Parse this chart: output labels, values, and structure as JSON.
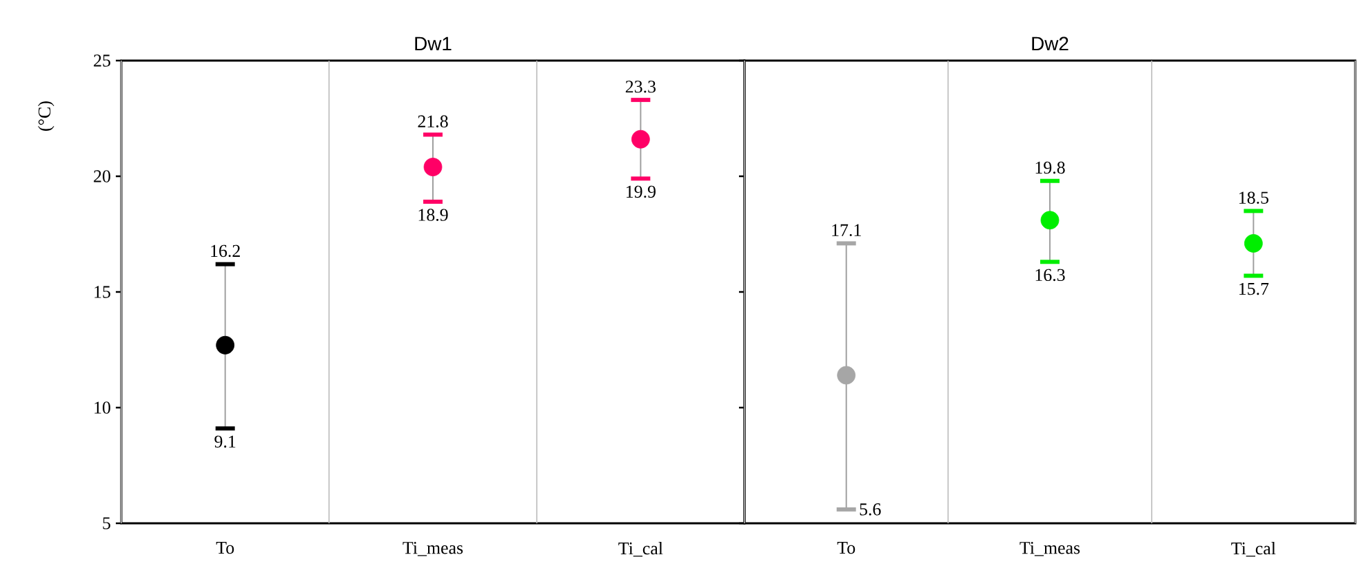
{
  "chart_data": [
    {
      "type": "scatter",
      "title": "Dw1",
      "ylabel": "(°C)",
      "categories": [
        "To",
        "Ti_meas",
        "Ti_cal"
      ],
      "values": [
        12.7,
        20.4,
        21.6
      ],
      "errors": [
        [
          9.1,
          16.2
        ],
        [
          18.9,
          21.8
        ],
        [
          19.9,
          23.3
        ]
      ],
      "colors": [
        "#000000",
        "#ff0066",
        "#ff0066"
      ],
      "marker": "circle",
      "ylim": [
        5,
        25
      ],
      "yticks": [
        5,
        10,
        15,
        20,
        25
      ],
      "grid": "x",
      "annotations": [
        {
          "text": "16.2",
          "x": "To",
          "y": 16.2
        },
        {
          "text": "9.1",
          "x": "To",
          "y": 9.1
        },
        {
          "text": "21.8",
          "x": "Ti_meas",
          "y": 21.8
        },
        {
          "text": "18.9",
          "x": "Ti_meas",
          "y": 18.9
        },
        {
          "text": "23.3",
          "x": "Ti_cal",
          "y": 23.3
        },
        {
          "text": "19.9",
          "x": "Ti_cal",
          "y": 19.9
        }
      ]
    },
    {
      "type": "scatter",
      "title": "Dw2",
      "categories": [
        "To",
        "Ti_meas",
        "Ti_cal"
      ],
      "values": [
        11.4,
        18.1,
        17.1
      ],
      "errors": [
        [
          5.6,
          17.1
        ],
        [
          16.3,
          19.8
        ],
        [
          15.7,
          18.5
        ]
      ],
      "colors": [
        "#a6a6a6",
        "#00ee00",
        "#00ee00"
      ],
      "marker": "circle",
      "ylim": [
        5,
        25
      ],
      "yticks": [
        5,
        10,
        15,
        20,
        25
      ],
      "grid": "x",
      "tick_labels": "x",
      "annotations": [
        {
          "text": "17.1",
          "x": "To",
          "y": 17.1
        },
        {
          "text": "5.6",
          "x": "To",
          "y": 5.6
        },
        {
          "text": "19.8",
          "x": "Ti_meas",
          "y": 19.8
        },
        {
          "text": "16.3",
          "x": "Ti_meas",
          "y": 16.3
        },
        {
          "text": "18.5",
          "x": "Ti_cal",
          "y": 18.5
        },
        {
          "text": "15.7",
          "x": "Ti_cal",
          "y": 15.7
        }
      ]
    }
  ]
}
